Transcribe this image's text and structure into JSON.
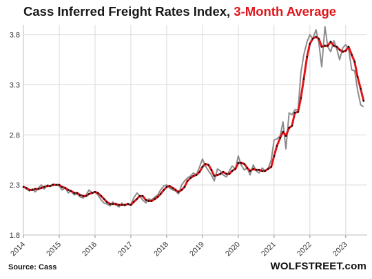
{
  "chart_data": {
    "type": "line",
    "title_main": "Cass Inferred Freight Rates Index, ",
    "title_accent": "3-Month Average",
    "source": "Source: Cass",
    "brand": "WOLFSTREET.com",
    "colors": {
      "raw": "#8c8c8c",
      "avg": "#e0151b",
      "dot": "#111111",
      "grid": "#d9d9d9",
      "accent": "#e0151b"
    },
    "ylim": [
      1.8,
      3.9
    ],
    "yticks": [
      "1.8",
      "2.3",
      "2.8",
      "3.3",
      "3.8"
    ],
    "xlim": [
      2014,
      2023.6
    ],
    "xticks": [
      "2014",
      "2015",
      "2016",
      "2017",
      "2018",
      "2019",
      "2020",
      "2021",
      "2022",
      "2023"
    ],
    "grid": true,
    "series": [
      {
        "x": [
          2014.0,
          2014.08,
          2014.17,
          2014.25,
          2014.33,
          2014.42,
          2014.5,
          2014.58,
          2014.67,
          2014.75,
          2014.83,
          2014.92,
          2015.0,
          2015.08,
          2015.17,
          2015.25,
          2015.33,
          2015.42,
          2015.5,
          2015.58,
          2015.67,
          2015.75,
          2015.83,
          2015.92,
          2016.0,
          2016.08,
          2016.17,
          2016.25,
          2016.33,
          2016.42,
          2016.5,
          2016.58,
          2016.67,
          2016.75,
          2016.83,
          2016.92,
          2017.0,
          2017.08,
          2017.17,
          2017.25,
          2017.33,
          2017.42,
          2017.5,
          2017.58,
          2017.67,
          2017.75,
          2017.83,
          2017.92,
          2018.0,
          2018.08,
          2018.17,
          2018.25,
          2018.33,
          2018.42,
          2018.5,
          2018.58,
          2018.67,
          2018.75,
          2018.83,
          2018.92,
          2019.0,
          2019.08,
          2019.17,
          2019.25,
          2019.33,
          2019.42,
          2019.5,
          2019.58,
          2019.67,
          2019.75,
          2019.83,
          2019.92,
          2020.0,
          2020.08,
          2020.17,
          2020.25,
          2020.33,
          2020.42,
          2020.5,
          2020.58,
          2020.67,
          2020.75,
          2020.83,
          2020.92,
          2021.0,
          2021.08,
          2021.17,
          2021.25,
          2021.33,
          2021.42,
          2021.5,
          2021.58,
          2021.67,
          2021.75,
          2021.83,
          2021.92,
          2022.0,
          2022.08,
          2022.17,
          2022.25,
          2022.33,
          2022.42,
          2022.5,
          2022.58,
          2022.67,
          2022.75,
          2022.83,
          2022.92,
          2023.0,
          2023.08,
          2023.17,
          2023.25,
          2023.33,
          2023.42,
          2023.5
        ],
        "values": [
          2.29,
          2.26,
          2.24,
          2.26,
          2.23,
          2.27,
          2.3,
          2.26,
          2.3,
          2.29,
          2.31,
          2.3,
          2.29,
          2.25,
          2.27,
          2.22,
          2.24,
          2.2,
          2.21,
          2.18,
          2.17,
          2.2,
          2.25,
          2.22,
          2.23,
          2.2,
          2.15,
          2.12,
          2.11,
          2.09,
          2.13,
          2.1,
          2.08,
          2.12,
          2.09,
          2.11,
          2.1,
          2.17,
          2.22,
          2.19,
          2.15,
          2.12,
          2.16,
          2.15,
          2.18,
          2.2,
          2.25,
          2.29,
          2.3,
          2.27,
          2.25,
          2.24,
          2.21,
          2.3,
          2.34,
          2.37,
          2.39,
          2.42,
          2.4,
          2.48,
          2.56,
          2.49,
          2.44,
          2.4,
          2.34,
          2.46,
          2.44,
          2.4,
          2.38,
          2.44,
          2.49,
          2.46,
          2.59,
          2.5,
          2.45,
          2.47,
          2.4,
          2.5,
          2.44,
          2.42,
          2.47,
          2.44,
          2.46,
          2.55,
          2.75,
          2.76,
          2.79,
          2.93,
          2.66,
          3.02,
          3.0,
          3.05,
          3.05,
          3.42,
          3.6,
          3.73,
          3.8,
          3.76,
          3.85,
          3.72,
          3.48,
          3.88,
          3.68,
          3.63,
          3.74,
          3.66,
          3.55,
          3.67,
          3.7,
          3.66,
          3.45,
          3.44,
          3.25,
          3.1,
          3.08
        ]
      },
      {
        "x": [
          2014.0,
          2014.08,
          2014.17,
          2014.25,
          2014.33,
          2014.42,
          2014.5,
          2014.58,
          2014.67,
          2014.75,
          2014.83,
          2014.92,
          2015.0,
          2015.08,
          2015.17,
          2015.25,
          2015.33,
          2015.42,
          2015.5,
          2015.58,
          2015.67,
          2015.75,
          2015.83,
          2015.92,
          2016.0,
          2016.08,
          2016.17,
          2016.25,
          2016.33,
          2016.42,
          2016.5,
          2016.58,
          2016.67,
          2016.75,
          2016.83,
          2016.92,
          2017.0,
          2017.08,
          2017.17,
          2017.25,
          2017.33,
          2017.42,
          2017.5,
          2017.58,
          2017.67,
          2017.75,
          2017.83,
          2017.92,
          2018.0,
          2018.08,
          2018.17,
          2018.25,
          2018.33,
          2018.42,
          2018.5,
          2018.58,
          2018.67,
          2018.75,
          2018.83,
          2018.92,
          2019.0,
          2019.08,
          2019.17,
          2019.25,
          2019.33,
          2019.42,
          2019.5,
          2019.58,
          2019.67,
          2019.75,
          2019.83,
          2019.92,
          2020.0,
          2020.08,
          2020.17,
          2020.25,
          2020.33,
          2020.42,
          2020.5,
          2020.58,
          2020.67,
          2020.75,
          2020.83,
          2020.92,
          2021.0,
          2021.08,
          2021.17,
          2021.25,
          2021.33,
          2021.42,
          2021.5,
          2021.58,
          2021.67,
          2021.75,
          2021.83,
          2021.92,
          2022.0,
          2022.08,
          2022.17,
          2022.25,
          2022.33,
          2022.42,
          2022.5,
          2022.58,
          2022.67,
          2022.75,
          2022.83,
          2022.92,
          2023.0,
          2023.08,
          2023.17,
          2023.25,
          2023.33,
          2023.42,
          2023.5
        ],
        "values": [
          2.28,
          2.27,
          2.25,
          2.25,
          2.26,
          2.26,
          2.27,
          2.28,
          2.29,
          2.29,
          2.3,
          2.3,
          2.3,
          2.28,
          2.27,
          2.25,
          2.24,
          2.22,
          2.22,
          2.2,
          2.19,
          2.19,
          2.21,
          2.22,
          2.23,
          2.22,
          2.19,
          2.16,
          2.13,
          2.11,
          2.11,
          2.11,
          2.1,
          2.1,
          2.1,
          2.11,
          2.1,
          2.13,
          2.16,
          2.19,
          2.19,
          2.15,
          2.14,
          2.14,
          2.16,
          2.18,
          2.21,
          2.25,
          2.28,
          2.29,
          2.27,
          2.25,
          2.23,
          2.25,
          2.28,
          2.34,
          2.37,
          2.39,
          2.4,
          2.43,
          2.48,
          2.51,
          2.5,
          2.45,
          2.39,
          2.4,
          2.41,
          2.43,
          2.41,
          2.41,
          2.44,
          2.46,
          2.52,
          2.52,
          2.51,
          2.47,
          2.44,
          2.46,
          2.45,
          2.45,
          2.44,
          2.44,
          2.46,
          2.48,
          2.59,
          2.69,
          2.77,
          2.83,
          2.79,
          2.87,
          2.89,
          3.02,
          3.03,
          3.17,
          3.36,
          3.58,
          3.71,
          3.76,
          3.78,
          3.76,
          3.68,
          3.69,
          3.69,
          3.73,
          3.69,
          3.68,
          3.65,
          3.63,
          3.64,
          3.68,
          3.6,
          3.53,
          3.38,
          3.26,
          3.14
        ]
      }
    ]
  }
}
